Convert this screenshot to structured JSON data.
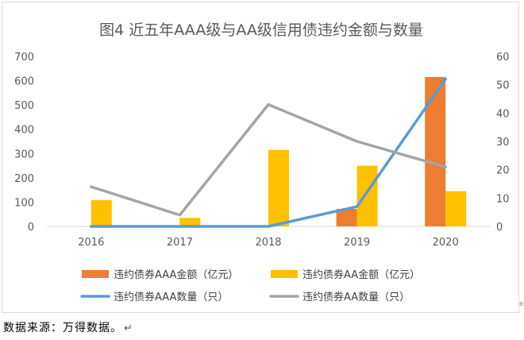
{
  "chart_data": {
    "type": "bar+line",
    "title": "图4  近五年AAA级与AA级信用债违约金额与数量",
    "categories": [
      "2016",
      "2017",
      "2018",
      "2019",
      "2020"
    ],
    "y_left": {
      "ticks": [
        "0",
        "100",
        "200",
        "300",
        "400",
        "500",
        "600",
        "700"
      ],
      "range": [
        0,
        700
      ]
    },
    "y_right": {
      "ticks": [
        "0",
        "10",
        "20",
        "30",
        "40",
        "50",
        "60"
      ],
      "range": [
        0,
        60
      ]
    },
    "grid": false,
    "legend_position": "bottom",
    "bar_series": [
      {
        "name": "违约债券AAA金额（亿元）",
        "color": "#ED7D31",
        "axis": "left",
        "values": [
          0,
          0,
          0,
          72,
          615
        ]
      },
      {
        "name": "违约债券AA金额（亿元）",
        "color": "#FFC000",
        "axis": "left",
        "values": [
          108,
          35,
          315,
          250,
          145
        ]
      }
    ],
    "line_series": [
      {
        "name": "违约债券AAA数量（只）",
        "color": "#5B9BD5",
        "axis": "right",
        "values": [
          0,
          0,
          0,
          7,
          52
        ]
      },
      {
        "name": "违约债券AA数量（只）",
        "color": "#A5A5A5",
        "axis": "right",
        "values": [
          14,
          4,
          43,
          30,
          21
        ]
      }
    ]
  },
  "source_note": "数据来源：万得数据。",
  "return_glyph": "↵",
  "edge_mark": "e"
}
